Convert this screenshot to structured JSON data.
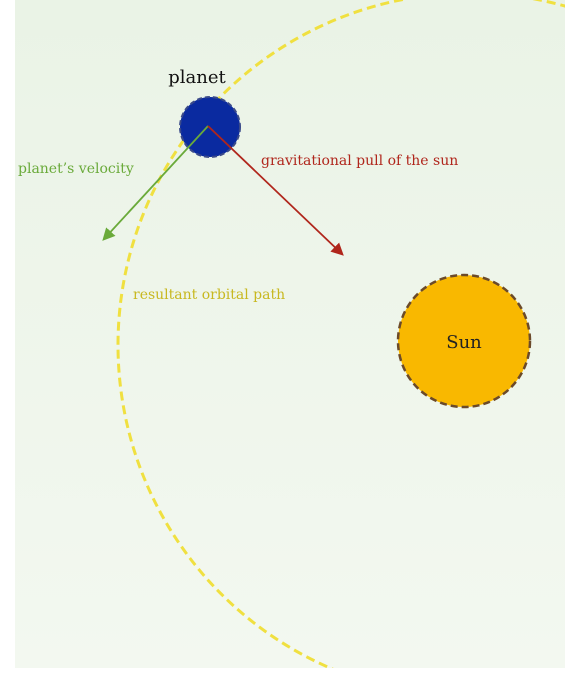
{
  "labels": {
    "planet": "planet",
    "velocity": "planet’s velocity",
    "gravity": "gravitational pull of the sun",
    "orbit": "resultant orbital path",
    "sun": "Sun"
  }
}
